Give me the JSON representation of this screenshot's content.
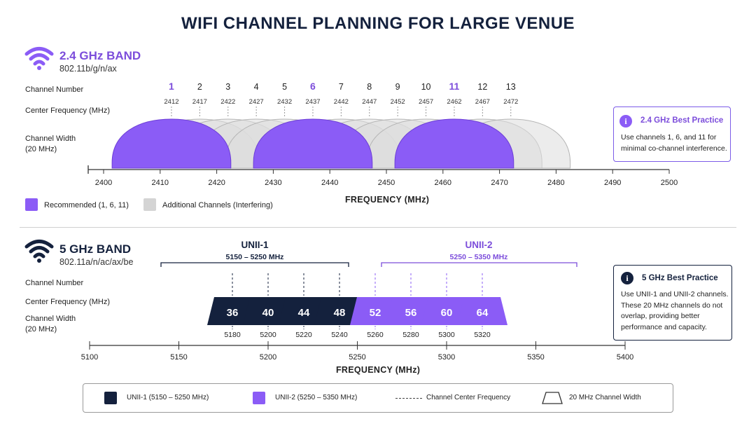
{
  "title": "WIFI CHANNEL PLANNING FOR LARGE VENUE",
  "colors": {
    "navy": "#14213d",
    "purple": "#8b5cf6",
    "purple_text": "#7c4ddb",
    "gray_fill": "#dcdcdc",
    "gray_stroke": "#b5b5b5",
    "divider": "#cfcfcf"
  },
  "row_labels": {
    "channel_number": "Channel Number",
    "center_frequency": "Center Frequency (MHz)",
    "width_line1": "Channel Width",
    "width_line2": "(20 MHz)"
  },
  "band24": {
    "name": "2.4 GHz BAND",
    "standard": "802.11b/g/n/ax",
    "icon": "wifi-icon",
    "axis_label": "FREQUENCY (MHz)",
    "ticks": [
      "2400",
      "2410",
      "2420",
      "2430",
      "2440",
      "2450",
      "2460",
      "2470",
      "2480",
      "2490",
      "2500"
    ],
    "channels": [
      {
        "num": "1",
        "freq": "2412",
        "rec": true
      },
      {
        "num": "2",
        "freq": "2417",
        "rec": false
      },
      {
        "num": "3",
        "freq": "2422",
        "rec": false
      },
      {
        "num": "4",
        "freq": "2427",
        "rec": false
      },
      {
        "num": "5",
        "freq": "2432",
        "rec": false
      },
      {
        "num": "6",
        "freq": "2437",
        "rec": true
      },
      {
        "num": "7",
        "freq": "2442",
        "rec": false
      },
      {
        "num": "8",
        "freq": "2447",
        "rec": false
      },
      {
        "num": "9",
        "freq": "2452",
        "rec": false
      },
      {
        "num": "10",
        "freq": "2457",
        "rec": false
      },
      {
        "num": "11",
        "freq": "2462",
        "rec": true
      },
      {
        "num": "12",
        "freq": "2467",
        "rec": false
      },
      {
        "num": "13",
        "freq": "2472",
        "rec": false
      }
    ],
    "legend": {
      "recommended": "Recommended (1, 6, 11)",
      "additional": "Additional Channels (Interfering)"
    },
    "note": {
      "icon": "info-icon",
      "title": "2.4 GHz Best Practice",
      "line1": "Use channels 1, 6, and 11 for",
      "line2": "minimal co-channel interference."
    }
  },
  "band5": {
    "name": "5 GHz BAND",
    "standard": "802.11a/n/ac/ax/be",
    "icon": "wifi-icon",
    "axis_label": "FREQUENCY (MHz)",
    "ticks": [
      "5100",
      "5150",
      "5200",
      "5250",
      "5300",
      "5350",
      "5400"
    ],
    "unii1": {
      "name": "UNII-1",
      "range": "5150 – 5250 MHz"
    },
    "unii2": {
      "name": "UNII-2",
      "range": "5250 – 5350 MHz"
    },
    "channels": [
      {
        "num": "36",
        "freq": "5180",
        "group": 1
      },
      {
        "num": "40",
        "freq": "5200",
        "group": 1
      },
      {
        "num": "44",
        "freq": "5220",
        "group": 1
      },
      {
        "num": "48",
        "freq": "5240",
        "group": 1
      },
      {
        "num": "52",
        "freq": "5260",
        "group": 2
      },
      {
        "num": "56",
        "freq": "5280",
        "group": 2
      },
      {
        "num": "60",
        "freq": "5300",
        "group": 2
      },
      {
        "num": "64",
        "freq": "5320",
        "group": 2
      }
    ],
    "note": {
      "icon": "info-icon",
      "title": "5 GHz Best Practice",
      "line1": "Use UNII-1 and UNII-2 channels.",
      "line2": "These 20 MHz channels do not",
      "line3": "overlap, providing better",
      "line4": "performance and capacity."
    }
  },
  "legend_bottom": {
    "unii1": "UNII-1 (5150 – 5250 MHz)",
    "unii2": "UNII-2 (5250 – 5350 MHz)",
    "center": "Channel Center Frequency",
    "width": "20 MHz Channel Width"
  }
}
